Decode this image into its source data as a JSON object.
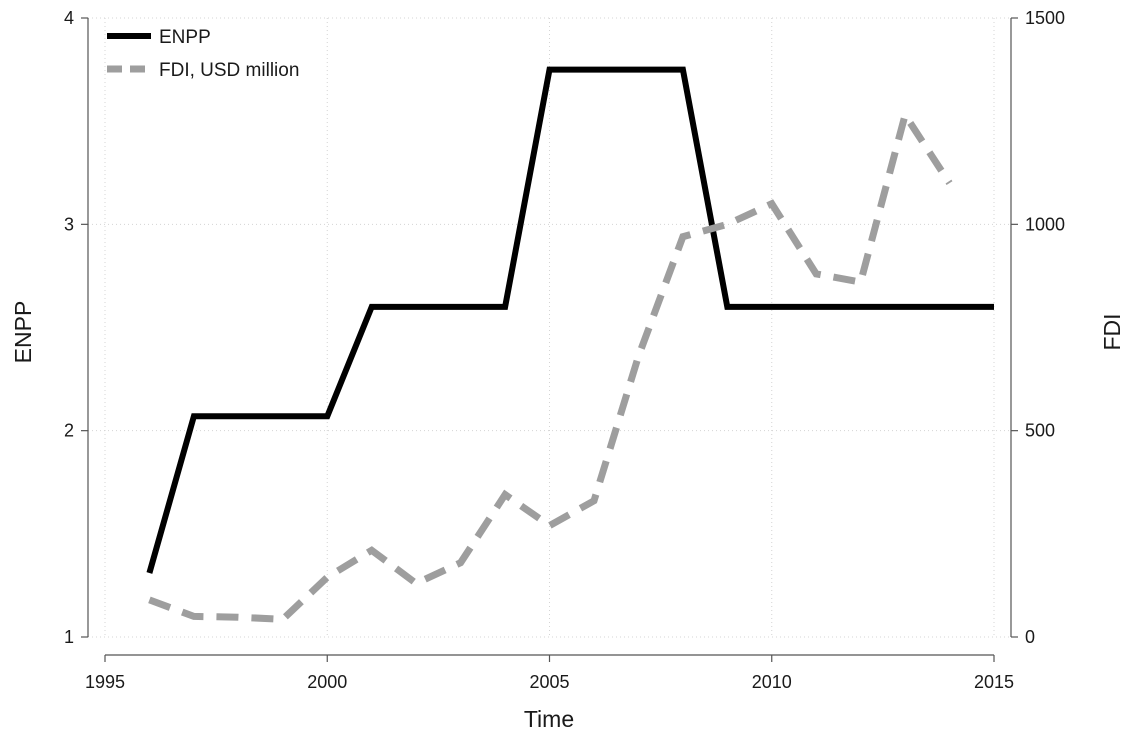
{
  "chart_data": {
    "type": "line",
    "xlabel": "Time",
    "ylabel": "ENPP",
    "y2label": "FDI",
    "xlim": [
      1995,
      2015
    ],
    "ylim": [
      1,
      4
    ],
    "y2lim": [
      0,
      1500
    ],
    "xticks": [
      1995,
      2000,
      2005,
      2010,
      2015
    ],
    "yticks": [
      1,
      2,
      3,
      4
    ],
    "y2ticks": [
      0,
      500,
      1000,
      1500
    ],
    "grid": true,
    "legend_position": "top-left",
    "series": [
      {
        "name": "ENPP",
        "axis": "left",
        "color": "#000000",
        "style": "solid",
        "x": [
          1996,
          1997,
          2000,
          2001,
          2004,
          2005,
          2008,
          2009,
          2015
        ],
        "y": [
          1.31,
          2.07,
          2.07,
          2.6,
          2.6,
          3.75,
          3.75,
          2.6,
          2.6
        ]
      },
      {
        "name": "FDI, USD million",
        "axis": "right",
        "color": "#9e9e9e",
        "style": "dashed",
        "x": [
          1996,
          1997,
          1998,
          1999,
          2000,
          2001,
          2002,
          2003,
          2004,
          2005,
          2006,
          2007,
          2008,
          2009,
          2010,
          2011,
          2012,
          2013,
          2014
        ],
        "y": [
          90,
          50,
          48,
          43,
          145,
          210,
          130,
          180,
          345,
          270,
          330,
          680,
          970,
          1000,
          1050,
          880,
          860,
          1265,
          1100
        ]
      }
    ]
  }
}
